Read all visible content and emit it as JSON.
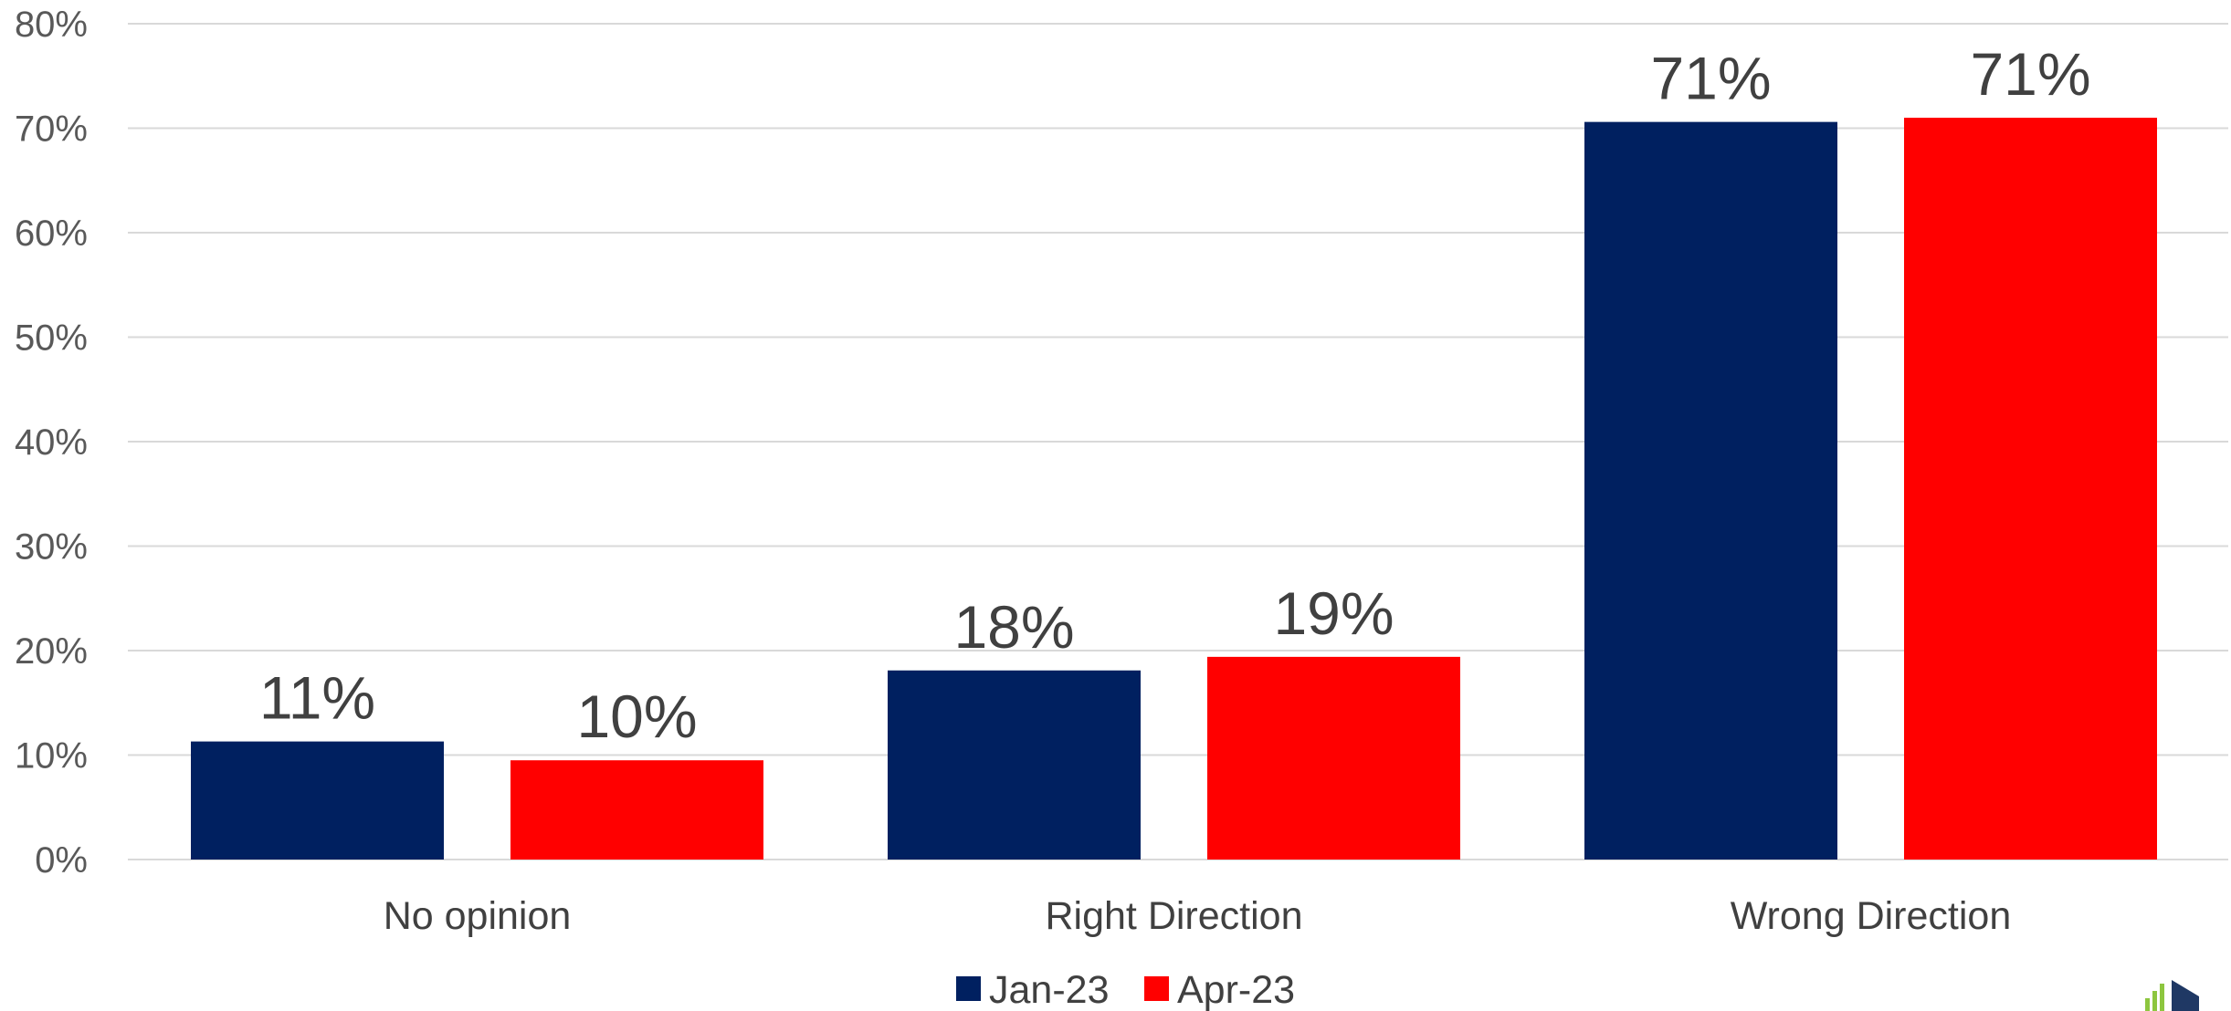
{
  "chart_data": {
    "type": "bar",
    "title": "",
    "xlabel": "",
    "ylabel": "",
    "categories": [
      "No opinion",
      "Right Direction",
      "Wrong Direction"
    ],
    "series": [
      {
        "name": "Jan-23",
        "color": "#002060",
        "values": [
          11,
          18,
          71
        ],
        "labels": [
          "11%",
          "18%",
          "71%"
        ]
      },
      {
        "name": "Apr-23",
        "color": "#ff0000",
        "values": [
          10,
          19,
          71
        ],
        "labels": [
          "10%",
          "19%",
          "71%"
        ]
      }
    ],
    "bar_values_precise": [
      [
        11.3,
        18.1,
        70.6
      ],
      [
        9.5,
        19.4,
        71.0
      ]
    ],
    "ylim": [
      0,
      80
    ],
    "yticks": [
      0,
      10,
      20,
      30,
      40,
      50,
      60,
      70,
      80
    ],
    "ytick_labels": [
      "0%",
      "10%",
      "20%",
      "30%",
      "40%",
      "50%",
      "60%",
      "70%",
      "80%"
    ],
    "grid": true,
    "legend_position": "bottom-center"
  },
  "colors": {
    "grid": "#d9d9d9",
    "logo_green": "#8dc63f",
    "logo_navy": "#1f3864"
  }
}
